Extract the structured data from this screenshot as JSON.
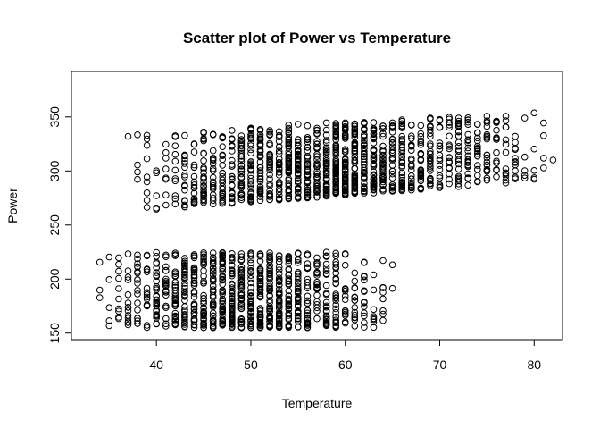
{
  "chart_data": {
    "type": "scatter",
    "title": "Scatter plot of Power vs Temperature",
    "xlabel": "Temperature",
    "ylabel": "Power",
    "xlim": [
      31,
      83
    ],
    "ylim": [
      144,
      392
    ],
    "x_ticks": [
      40,
      50,
      60,
      70,
      80
    ],
    "y_ticks": [
      150,
      200,
      250,
      300,
      350
    ],
    "grid": false,
    "legend": "none",
    "marker": "open-circle",
    "clusters": [
      {
        "x_range": [
          33,
          66
        ],
        "y_low": 155,
        "y_high": 225,
        "trend": "flat",
        "count": 900
      },
      {
        "x_range": [
          36,
          82
        ],
        "y_low": 262,
        "y_high": 335,
        "trend": "rising",
        "count": 1200
      }
    ]
  }
}
